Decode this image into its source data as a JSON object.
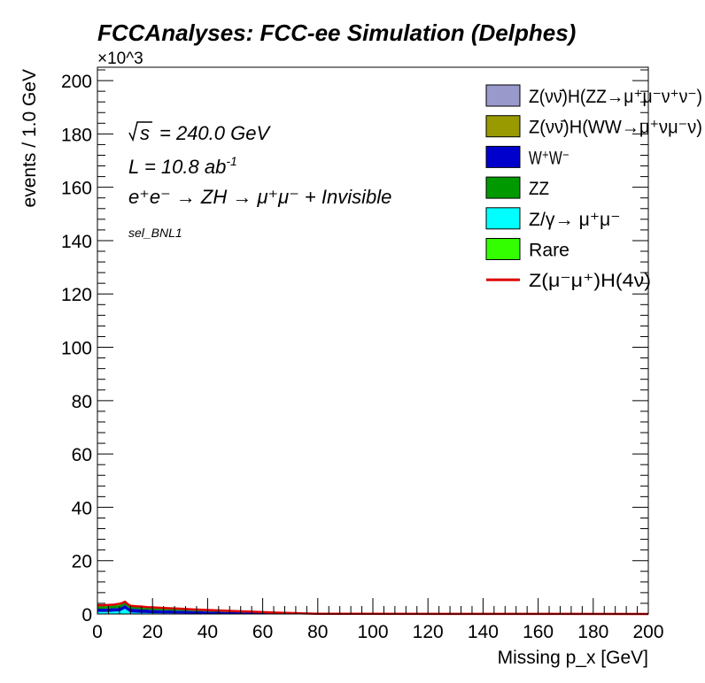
{
  "chart_data": {
    "type": "area",
    "title": "FCCAnalyses: FCC-ee Simulation (Delphes)",
    "xlabel": "Missing p_x [GeV]",
    "ylabel": "events / 1.0 GeV",
    "y_multiplier": "×10^3",
    "xlim": [
      0,
      200
    ],
    "ylim": [
      0,
      205
    ],
    "x_ticks": [
      0,
      20,
      40,
      60,
      80,
      100,
      120,
      140,
      160,
      180,
      200
    ],
    "y_ticks": [
      0,
      20,
      40,
      60,
      80,
      100,
      120,
      140,
      160,
      180,
      200
    ],
    "annotations": {
      "sqrt_s": "= 240.0 GeV",
      "lumi": "L = 10.8 ab",
      "lumi_exp": "-1",
      "process": "e⁺e⁻ → ZH → μ⁺μ⁻ + Invisible",
      "selection": "sel_BNL1"
    },
    "x": [
      0,
      2,
      4,
      6,
      8,
      9,
      10,
      11,
      12,
      14,
      16,
      18,
      20,
      25,
      30,
      35,
      40,
      45,
      50,
      55,
      60,
      65,
      70,
      75,
      80,
      200
    ],
    "series": [
      {
        "name": "Z/γ→ μ⁺μ⁻",
        "color": "#00ffff",
        "values": [
          0.8,
          0.8,
          0.8,
          0.9,
          1.0,
          1.4,
          2.0,
          1.2,
          0.6,
          0.5,
          0.4,
          0.35,
          0.3,
          0.25,
          0.2,
          0.15,
          0.12,
          0.1,
          0.08,
          0.06,
          0.05,
          0.04,
          0.03,
          0.02,
          0.0,
          0.0
        ]
      },
      {
        "name": "W⁺W⁻",
        "color": "#0000cc",
        "values": [
          1.2,
          1.2,
          1.3,
          1.3,
          1.3,
          1.4,
          1.4,
          1.4,
          1.4,
          1.4,
          1.3,
          1.3,
          1.2,
          1.1,
          1.0,
          0.9,
          0.8,
          0.7,
          0.6,
          0.5,
          0.4,
          0.3,
          0.2,
          0.1,
          0.05,
          0.0
        ]
      },
      {
        "name": "ZZ",
        "color": "#009900",
        "values": [
          0.9,
          0.9,
          0.9,
          1.0,
          1.0,
          1.0,
          1.0,
          1.0,
          0.9,
          0.9,
          0.9,
          0.8,
          0.8,
          0.7,
          0.6,
          0.5,
          0.45,
          0.4,
          0.35,
          0.3,
          0.25,
          0.2,
          0.15,
          0.1,
          0.05,
          0.0
        ]
      },
      {
        "name": "Rare",
        "color": "#33ff00",
        "values": [
          0.1,
          0.1,
          0.1,
          0.1,
          0.1,
          0.1,
          0.1,
          0.1,
          0.1,
          0.1,
          0.1,
          0.1,
          0.1,
          0.08,
          0.07,
          0.06,
          0.05,
          0.04,
          0.03,
          0.02,
          0.02,
          0.01,
          0.01,
          0.0,
          0.0,
          0.0
        ]
      }
    ],
    "legend_placement": "top-right",
    "legend": [
      {
        "label": "Z(νν̄)H(ZZ→μ⁺μ⁻ν⁺ν⁻)",
        "kind": "box",
        "color": "#9999cc"
      },
      {
        "label": "Z(νν̄)H(WW→μ⁺νμ⁻ν)",
        "kind": "box",
        "color": "#999900"
      },
      {
        "label": "W⁺W⁻",
        "kind": "box",
        "color": "#0000cc"
      },
      {
        "label": "ZZ",
        "kind": "box",
        "color": "#009900"
      },
      {
        "label": "Z/γ→ μ⁺μ⁻",
        "kind": "box",
        "color": "#00ffff"
      },
      {
        "label": "Rare",
        "kind": "box",
        "color": "#33ff00"
      },
      {
        "label": "Z(μ⁻μ⁺)H(4ν)",
        "kind": "line",
        "color": "#dd0000"
      }
    ],
    "signal": {
      "name": "Z(μ⁻μ⁺)H(4ν)",
      "color": "#dd0000",
      "values": [
        3.3,
        3.3,
        3.4,
        3.5,
        3.8,
        4.1,
        4.6,
        3.7,
        3.1,
        2.9,
        2.8,
        2.6,
        2.5,
        2.2,
        2.0,
        1.7,
        1.5,
        1.3,
        1.1,
        0.9,
        0.7,
        0.5,
        0.35,
        0.2,
        0.1,
        0.0
      ]
    }
  }
}
